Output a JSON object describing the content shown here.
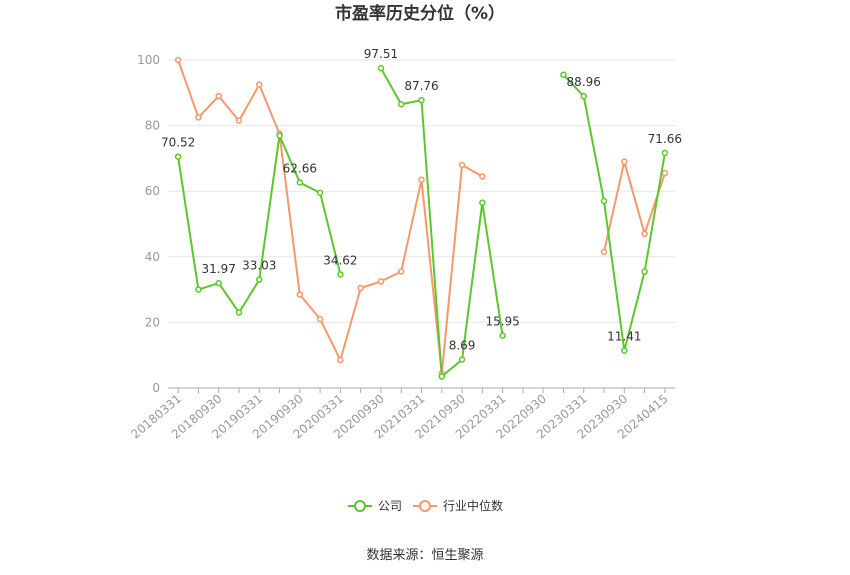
{
  "chart_data": {
    "type": "line",
    "title": "市盈率历史分位（%）",
    "xlabel": "",
    "ylabel": "",
    "ylim": [
      0,
      100
    ],
    "yticks": [
      0,
      20,
      40,
      60,
      80,
      100
    ],
    "grid": true,
    "legend_position": "bottom",
    "x": [
      "20180331",
      "20180630",
      "20180930",
      "20181231",
      "20190331",
      "20190630",
      "20190930",
      "20191231",
      "20200331",
      "20200630",
      "20200930",
      "20201231",
      "20210331",
      "20210630",
      "20210930",
      "20211231",
      "20220331",
      "20220630",
      "20220930",
      "20221231",
      "20230331",
      "20230630",
      "20230930",
      "20231231",
      "20240415"
    ],
    "x_tick_labels": [
      "20180331",
      "20180930",
      "20190331",
      "20190930",
      "20200331",
      "20200930",
      "20210331",
      "20210930",
      "20220331",
      "20220930",
      "20230331",
      "20230930",
      "20240415"
    ],
    "series": [
      {
        "name": "公司",
        "color": "#5cc72d",
        "values": [
          70.52,
          30,
          31.97,
          23,
          33.03,
          77,
          62.66,
          59.5,
          34.62,
          null,
          97.51,
          86.5,
          87.76,
          3.5,
          8.69,
          56.5,
          15.95,
          null,
          null,
          95.5,
          88.96,
          57,
          11.41,
          35.5,
          71.66
        ],
        "data_labels": {
          "0": "70.52",
          "2": "31.97",
          "4": "33.03",
          "6": "62.66",
          "8": "34.62",
          "10": "97.51",
          "12": "87.76",
          "14": "8.69",
          "16": "15.95",
          "20": "88.96",
          "22": "11.41",
          "24": "71.66"
        }
      },
      {
        "name": "行业中位数",
        "color": "#f7976a",
        "values": [
          100,
          82.5,
          89,
          81.5,
          92.5,
          77.5,
          28.5,
          21,
          8.5,
          30.5,
          32.5,
          35.5,
          63.5,
          4.5,
          68,
          64.5,
          null,
          null,
          null,
          null,
          null,
          41.5,
          69,
          47,
          65.5
        ]
      }
    ]
  },
  "source_text": "数据来源：恒生聚源"
}
